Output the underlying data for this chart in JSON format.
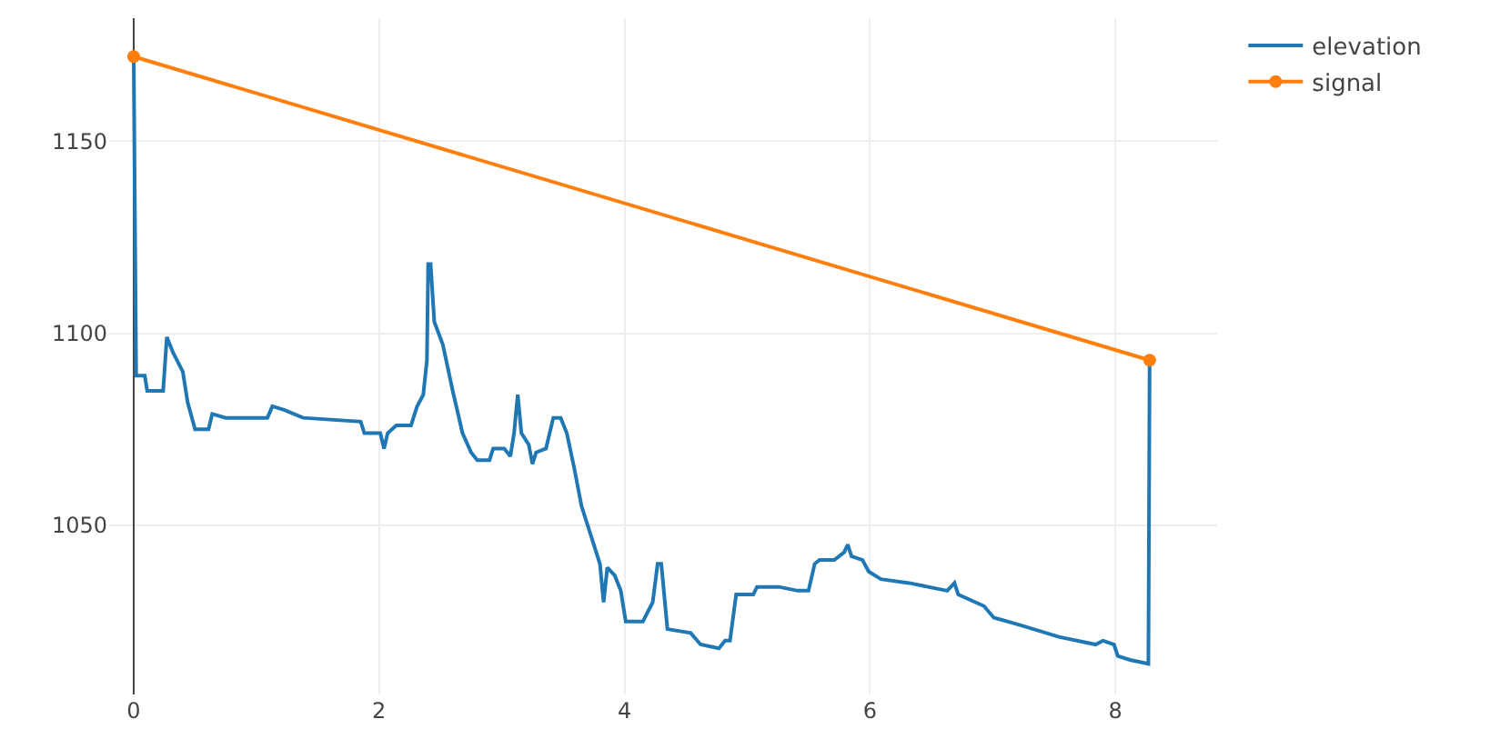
{
  "chart_data": {
    "type": "line",
    "xlim": [
      -0.2,
      8.83
    ],
    "ylim": [
      1006,
      1182
    ],
    "xticks": [
      0,
      2,
      4,
      6,
      8
    ],
    "yticks": [
      1050,
      1100,
      1150
    ],
    "grid": true,
    "legend": "top right",
    "series": [
      {
        "name": "elevation",
        "color": "#1f77b4",
        "marker": "none",
        "x": [
          0,
          0.02,
          0.09,
          0.11,
          0.24,
          0.27,
          0.32,
          0.4,
          0.44,
          0.5,
          0.61,
          0.64,
          0.75,
          1.09,
          1.13,
          1.23,
          1.38,
          1.85,
          1.88,
          2.01,
          2.04,
          2.07,
          2.14,
          2.26,
          2.31,
          2.36,
          2.39,
          2.4,
          2.42,
          2.45,
          2.52,
          2.6,
          2.68,
          2.75,
          2.8,
          2.9,
          2.93,
          3.02,
          3.07,
          3.1,
          3.13,
          3.16,
          3.22,
          3.25,
          3.28,
          3.36,
          3.42,
          3.48,
          3.53,
          3.59,
          3.65,
          3.74,
          3.8,
          3.83,
          3.86,
          3.92,
          3.97,
          4.01,
          4.15,
          4.23,
          4.27,
          4.3,
          4.35,
          4.54,
          4.62,
          4.77,
          4.82,
          4.86,
          4.91,
          5.0,
          5.05,
          5.08,
          5.26,
          5.41,
          5.5,
          5.55,
          5.59,
          5.71,
          5.79,
          5.82,
          5.85,
          5.94,
          5.99,
          6.09,
          6.32,
          6.63,
          6.69,
          6.72,
          6.93,
          7.01,
          7.23,
          7.54,
          7.84,
          7.9,
          7.99,
          8.02,
          8.12,
          8.27,
          8.28
        ],
        "values": [
          1172,
          1089,
          1089,
          1085,
          1085,
          1099,
          1095,
          1090,
          1082,
          1075,
          1075,
          1079,
          1078,
          1078,
          1081,
          1080,
          1078,
          1077,
          1074,
          1074,
          1070,
          1074,
          1076,
          1076,
          1081,
          1084,
          1093,
          1118,
          1118,
          1103,
          1097,
          1085,
          1074,
          1069,
          1067,
          1067,
          1070,
          1070,
          1068,
          1074,
          1084,
          1074,
          1071,
          1066,
          1069,
          1070,
          1078,
          1078,
          1074,
          1065,
          1055,
          1046,
          1040,
          1030,
          1039,
          1037,
          1033,
          1025,
          1025,
          1030,
          1040,
          1040,
          1023,
          1022,
          1019,
          1018,
          1020,
          1020,
          1032,
          1032,
          1032,
          1034,
          1034,
          1033,
          1033,
          1040,
          1041,
          1041,
          1043,
          1045,
          1042,
          1041,
          1038,
          1036,
          1035,
          1033,
          1035,
          1032,
          1029,
          1026,
          1024,
          1021,
          1019,
          1020,
          1019,
          1016,
          1015,
          1014,
          1093
        ]
      },
      {
        "name": "signal",
        "color": "#ff7f0e",
        "marker": "circle",
        "x": [
          0,
          8.28
        ],
        "values": [
          1172,
          1093
        ]
      }
    ]
  }
}
